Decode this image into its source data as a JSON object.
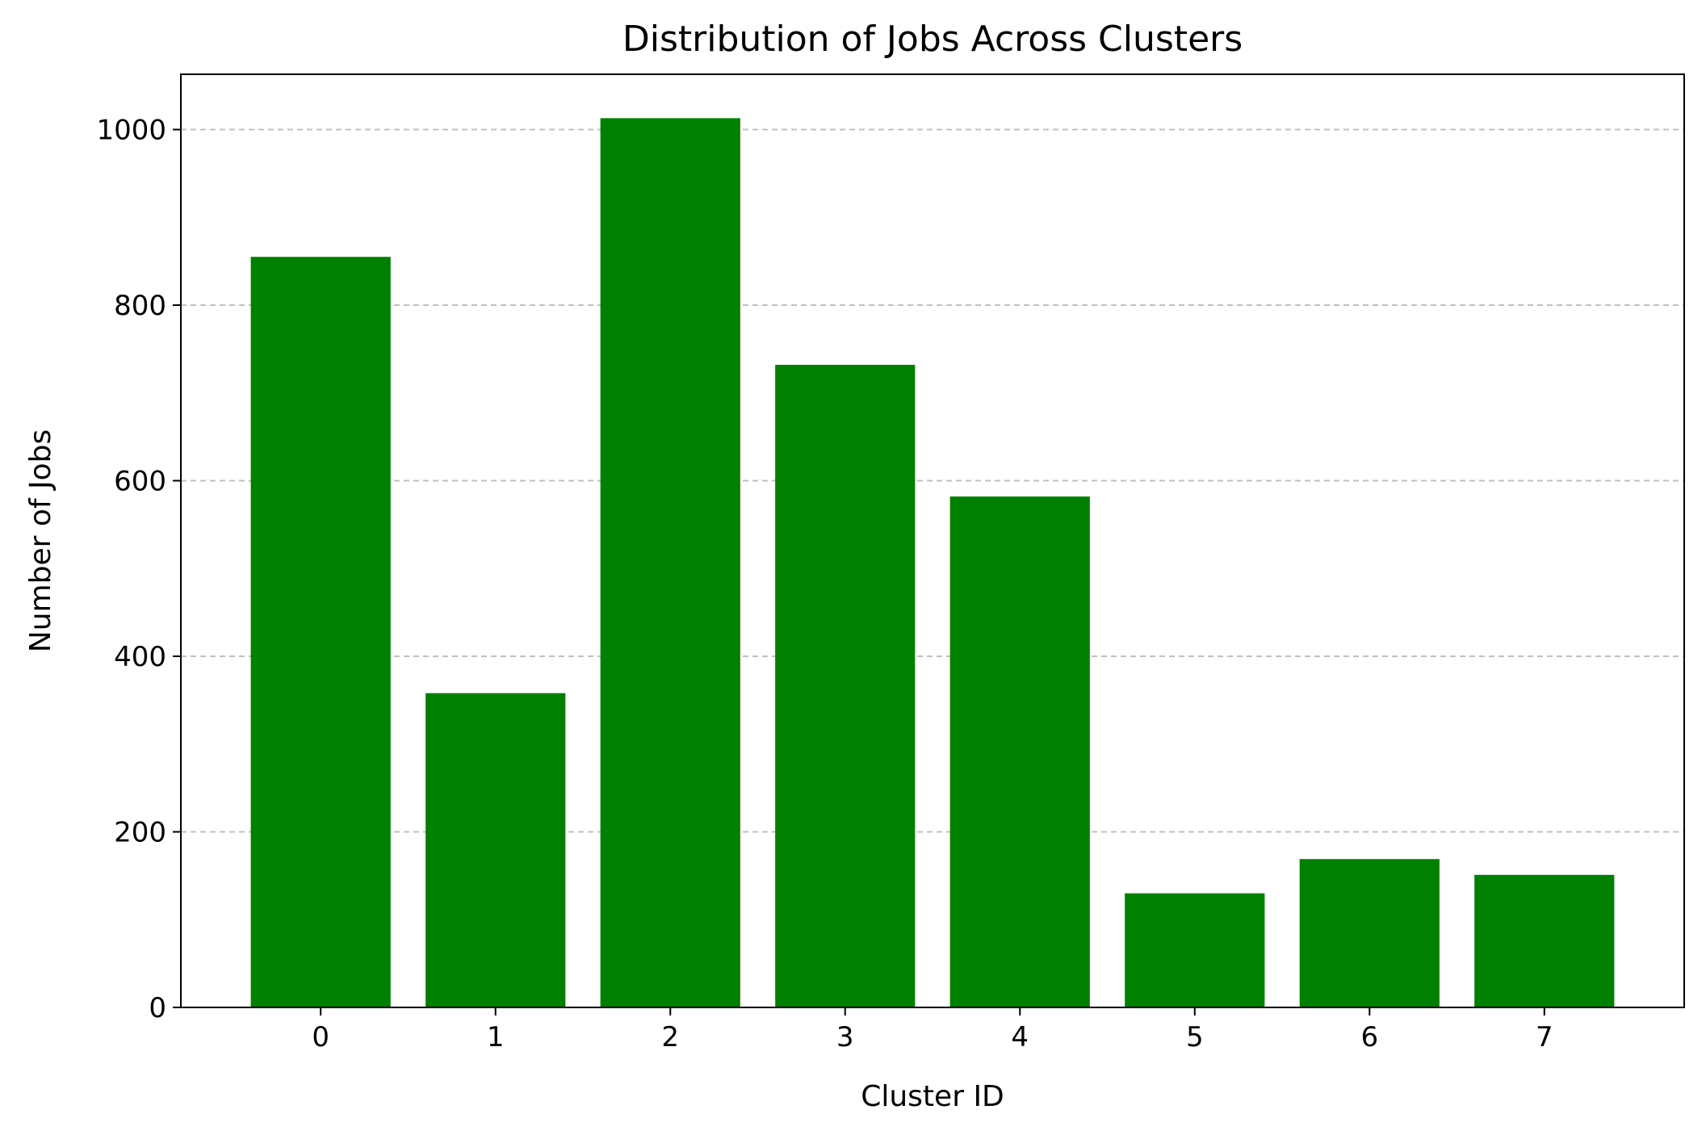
{
  "chart_data": {
    "type": "bar",
    "title": "Distribution of Jobs Across Clusters",
    "xlabel": "Cluster ID",
    "ylabel": "Number of Jobs",
    "categories": [
      "0",
      "1",
      "2",
      "3",
      "4",
      "5",
      "6",
      "7"
    ],
    "values": [
      855,
      358,
      1013,
      732,
      582,
      130,
      169,
      151
    ],
    "ylim": [
      0,
      1063
    ],
    "yticks": [
      0,
      200,
      400,
      600,
      800,
      1000
    ],
    "ytick_labels": [
      "0",
      "200",
      "400",
      "600",
      "800",
      "1000"
    ],
    "grid": "y-dashed",
    "legend": "none",
    "colors": {
      "bar": "#008000",
      "grid": "#c0c0c0",
      "axis": "#000000"
    }
  }
}
